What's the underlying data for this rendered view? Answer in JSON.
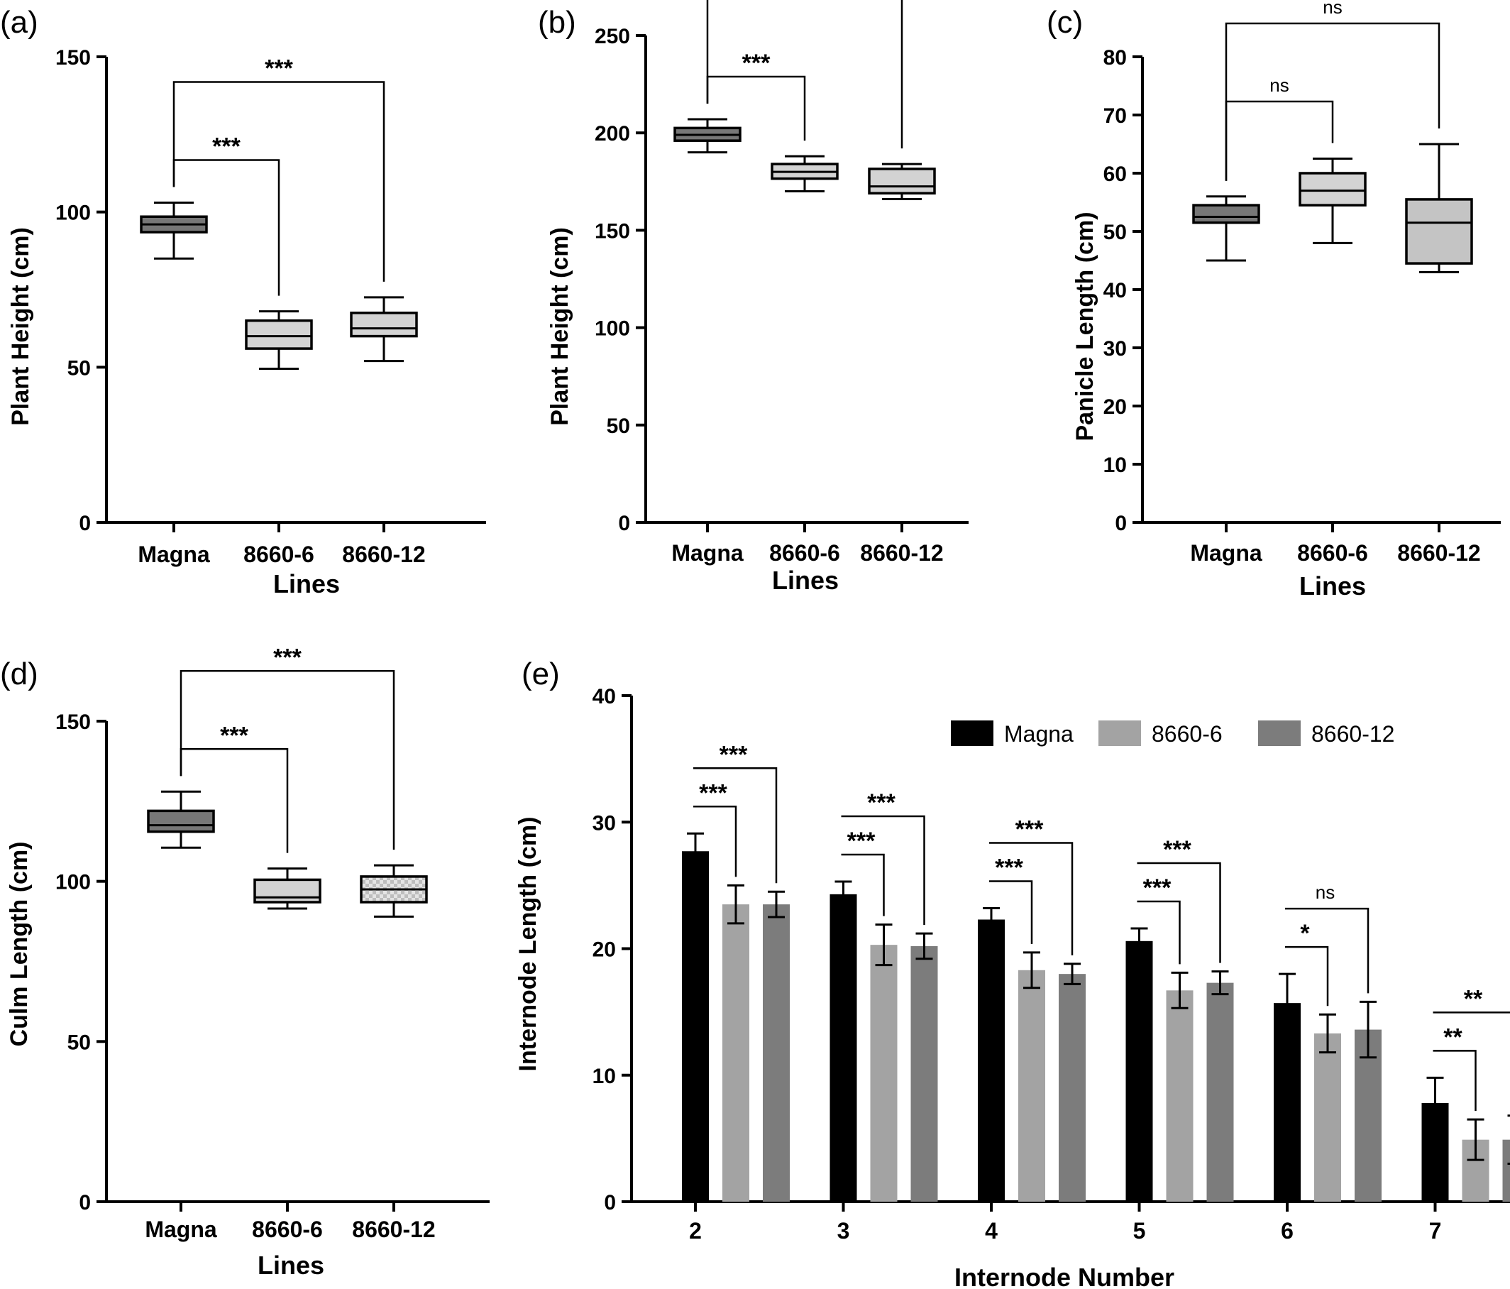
{
  "chart_data": [
    {
      "panel_label": "(a)",
      "type": "box",
      "xlabel": "Lines",
      "ylabel": "Plant Height (cm)",
      "ylim": [
        0,
        150
      ],
      "yticks": [
        0,
        50,
        100,
        150
      ],
      "categories": [
        "Magna",
        "8660-6",
        "8660-12"
      ],
      "boxes": [
        {
          "min": 85,
          "q1": 93.5,
          "median": 96,
          "q3": 98.5,
          "max": 103,
          "fill": "#777777"
        },
        {
          "min": 49.5,
          "q1": 56,
          "median": 60,
          "q3": 65,
          "max": 68,
          "fill": "#d3d3d3"
        },
        {
          "min": 52,
          "q1": 60,
          "median": 62.5,
          "q3": 67.5,
          "max": 72.5,
          "fill": "#d3d3d3"
        }
      ],
      "comparisons": [
        {
          "from": 0,
          "to": 1,
          "label": "***"
        },
        {
          "from": 0,
          "to": 2,
          "label": "***"
        }
      ]
    },
    {
      "panel_label": "(b)",
      "type": "box",
      "xlabel": "Lines",
      "ylabel": "Plant Height (cm)",
      "ylim": [
        0,
        250
      ],
      "yticks": [
        0,
        50,
        100,
        150,
        200,
        250
      ],
      "categories": [
        "Magna",
        "8660-6",
        "8660-12"
      ],
      "boxes": [
        {
          "min": 190,
          "q1": 196,
          "median": 199,
          "q3": 202.5,
          "max": 207,
          "fill": "#777777"
        },
        {
          "min": 170,
          "q1": 176.5,
          "median": 180,
          "q3": 184,
          "max": 188,
          "fill": "#d3d3d3"
        },
        {
          "min": 166,
          "q1": 169,
          "median": 172.5,
          "q3": 181.5,
          "max": 184,
          "fill": "#d3d3d3"
        }
      ],
      "comparisons": [
        {
          "from": 0,
          "to": 1,
          "label": "***"
        },
        {
          "from": 0,
          "to": 2,
          "label": "***"
        }
      ]
    },
    {
      "panel_label": "(c)",
      "type": "box",
      "xlabel": "Lines",
      "ylabel": "Panicle Length (cm)",
      "ylim": [
        0,
        80
      ],
      "yticks": [
        0,
        10,
        20,
        30,
        40,
        50,
        60,
        70,
        80
      ],
      "categories": [
        "Magna",
        "8660-6",
        "8660-12"
      ],
      "boxes": [
        {
          "min": 45,
          "q1": 51.5,
          "median": 52.5,
          "q3": 54.5,
          "max": 56,
          "fill": "#777777"
        },
        {
          "min": 48,
          "q1": 54.5,
          "median": 57,
          "q3": 60,
          "max": 62.5,
          "fill": "#d3d3d3"
        },
        {
          "min": 43,
          "q1": 44.5,
          "median": 51.5,
          "q3": 55.5,
          "max": 65,
          "fill": "#c4c4c4"
        }
      ],
      "comparisons": [
        {
          "from": 0,
          "to": 1,
          "label": "ns"
        },
        {
          "from": 0,
          "to": 2,
          "label": "ns"
        }
      ]
    },
    {
      "panel_label": "(d)",
      "type": "box",
      "xlabel": "Lines",
      "ylabel": "Culm Length (cm)",
      "ylim": [
        0,
        150
      ],
      "yticks": [
        0,
        50,
        100,
        150
      ],
      "categories": [
        "Magna",
        "8660-6",
        "8660-12"
      ],
      "boxes": [
        {
          "min": 110.5,
          "q1": 115.5,
          "median": 117.5,
          "q3": 122,
          "max": 128,
          "fill": "#777777"
        },
        {
          "min": 91.5,
          "q1": 93.5,
          "median": 95,
          "q3": 100.5,
          "max": 104,
          "fill": "#d3d3d3"
        },
        {
          "min": 89,
          "q1": 93.5,
          "median": 97.5,
          "q3": 101.5,
          "max": 105,
          "fill": "#d3d3d3",
          "pattern": true
        }
      ],
      "comparisons": [
        {
          "from": 0,
          "to": 1,
          "label": "***"
        },
        {
          "from": 0,
          "to": 2,
          "label": "***"
        }
      ]
    },
    {
      "panel_label": "(e)",
      "type": "bar",
      "xlabel": "Internode Number",
      "ylabel": "Internode Length (cm)",
      "ylim": [
        0,
        40
      ],
      "yticks": [
        0,
        10,
        20,
        30,
        40
      ],
      "categories": [
        "2",
        "3",
        "4",
        "5",
        "6",
        "7"
      ],
      "legend_position": "top-right",
      "series": [
        {
          "name": "Magna",
          "color": "#000000",
          "values": [
            27.7,
            24.3,
            22.3,
            20.6,
            15.7,
            7.8
          ],
          "errors": [
            1.4,
            1.0,
            0.9,
            1.0,
            2.3,
            2.0
          ]
        },
        {
          "name": "8660-6",
          "color": "#a3a3a3",
          "values": [
            23.5,
            20.3,
            18.3,
            16.7,
            13.3,
            4.9
          ],
          "errors": [
            1.5,
            1.6,
            1.4,
            1.4,
            1.5,
            1.6
          ]
        },
        {
          "name": "8660-12",
          "color": "#7c7c7c",
          "values": [
            23.5,
            20.2,
            18.0,
            17.3,
            13.6,
            4.9
          ],
          "errors": [
            1.0,
            1.0,
            0.8,
            0.9,
            2.2,
            1.9
          ]
        }
      ],
      "comparisons": [
        {
          "group": 0,
          "pair": [
            0,
            1
          ],
          "label": "***"
        },
        {
          "group": 0,
          "pair": [
            0,
            2
          ],
          "label": "***"
        },
        {
          "group": 1,
          "pair": [
            0,
            1
          ],
          "label": "***"
        },
        {
          "group": 1,
          "pair": [
            0,
            2
          ],
          "label": "***"
        },
        {
          "group": 2,
          "pair": [
            0,
            1
          ],
          "label": "***"
        },
        {
          "group": 2,
          "pair": [
            0,
            2
          ],
          "label": "***"
        },
        {
          "group": 3,
          "pair": [
            0,
            1
          ],
          "label": "***"
        },
        {
          "group": 3,
          "pair": [
            0,
            2
          ],
          "label": "***"
        },
        {
          "group": 4,
          "pair": [
            0,
            1
          ],
          "label": "*"
        },
        {
          "group": 4,
          "pair": [
            0,
            2
          ],
          "label": "ns"
        },
        {
          "group": 5,
          "pair": [
            0,
            1
          ],
          "label": "**"
        },
        {
          "group": 5,
          "pair": [
            0,
            2
          ],
          "label": "**"
        }
      ]
    }
  ]
}
